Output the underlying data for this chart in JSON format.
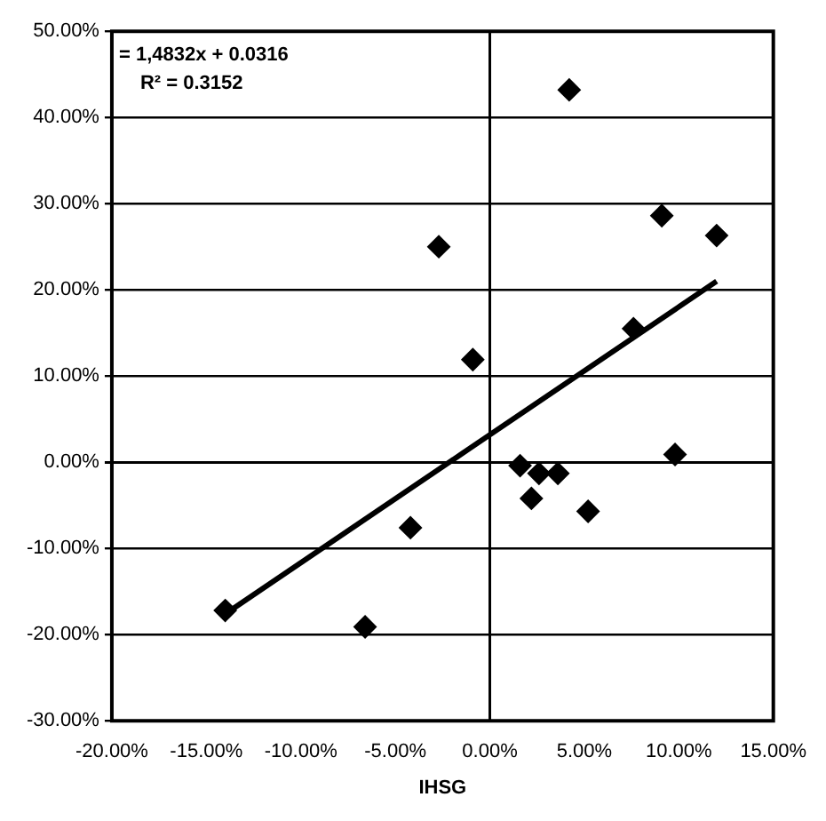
{
  "chart_data": {
    "type": "scatter",
    "xlabel": "IHSG",
    "annotations": [
      "= 1,4832x + 0.0316",
      "R² = 0.3152"
    ],
    "xlim": [
      -20,
      15
    ],
    "ylim": [
      -30,
      50
    ],
    "xticks": [
      {
        "value": -20,
        "label": "-20.00%"
      },
      {
        "value": -15,
        "label": "-15.00%"
      },
      {
        "value": -10,
        "label": "-10.00%"
      },
      {
        "value": -5,
        "label": "-5.00%"
      },
      {
        "value": 0,
        "label": "0.00%"
      },
      {
        "value": 5,
        "label": "5.00%"
      },
      {
        "value": 10,
        "label": "10.00%"
      },
      {
        "value": 15,
        "label": "15.00%"
      }
    ],
    "yticks": [
      {
        "value": -30,
        "label": "-30.00%"
      },
      {
        "value": -20,
        "label": "-20.00%"
      },
      {
        "value": -10,
        "label": "-10.00%"
      },
      {
        "value": 0,
        "label": "0.00%"
      },
      {
        "value": 10,
        "label": "10.00%"
      },
      {
        "value": 20,
        "label": "20.00%"
      },
      {
        "value": 30,
        "label": "30.00%"
      },
      {
        "value": 40,
        "label": "40.00%"
      },
      {
        "value": 50,
        "label": "50.00%"
      }
    ],
    "grid": "y",
    "legend": false,
    "ref_lines": [
      {
        "axis": "x",
        "value": 0,
        "color": "#000000"
      }
    ],
    "series": [
      {
        "type": "scatter",
        "color": "#000000",
        "marker": "diamond",
        "x": [
          4.2,
          9.1,
          12.0,
          -2.7,
          7.6,
          -0.9,
          9.8,
          1.6,
          2.6,
          3.6,
          2.2,
          5.2,
          -4.2,
          -6.6,
          -14.0
        ],
        "values": [
          43.2,
          28.6,
          26.3,
          25.0,
          15.5,
          11.9,
          0.9,
          -0.4,
          -1.3,
          -1.3,
          -4.2,
          -5.7,
          -7.6,
          -19.1,
          -17.2
        ]
      },
      {
        "type": "line",
        "color": "#000000",
        "marker": "none",
        "line_style": "solid",
        "x": [
          -14.0,
          12.0
        ],
        "values": [
          -17.6,
          21.0
        ]
      }
    ]
  }
}
